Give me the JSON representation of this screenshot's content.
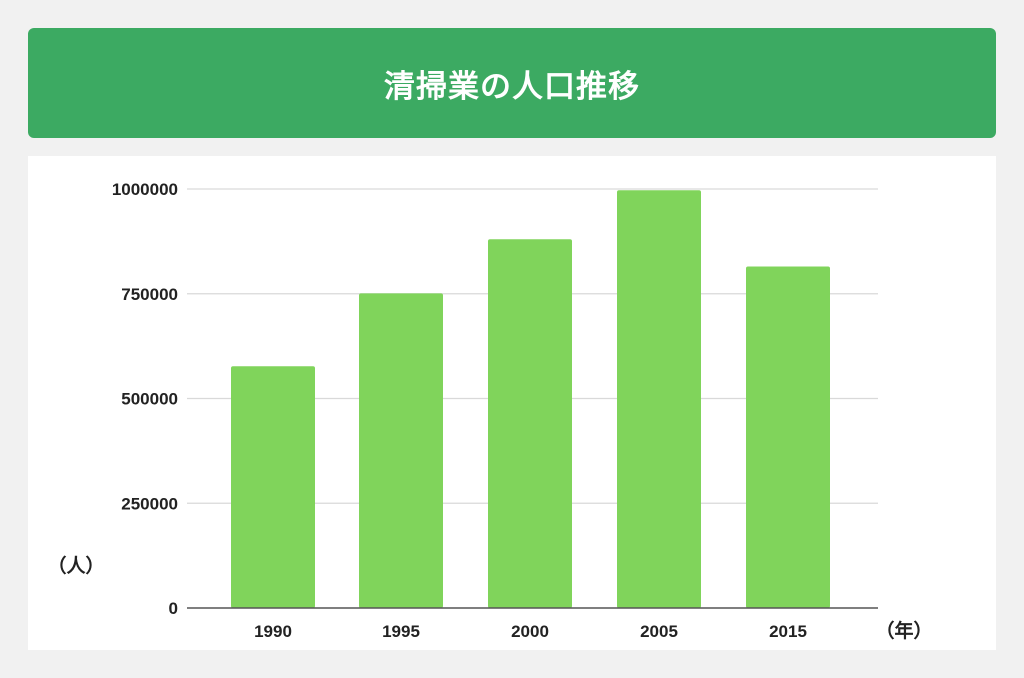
{
  "header": {
    "title": "清掃業の人口推移"
  },
  "chart_data": {
    "type": "bar",
    "title": "清掃業の人口推移",
    "categories": [
      "1990",
      "1995",
      "2000",
      "2005",
      "2015"
    ],
    "values": [
      577000,
      751000,
      880000,
      997000,
      815000
    ],
    "ylim": [
      0,
      1000000
    ],
    "yticks": [
      0,
      250000,
      500000,
      750000,
      1000000
    ],
    "ytick_labels": [
      "0",
      "250000",
      "500000",
      "750000",
      "1000000"
    ],
    "xlabel": "（年）",
    "ylabel": "（人）",
    "grid": true,
    "legend": "none",
    "bar_color": "#80d45b"
  }
}
